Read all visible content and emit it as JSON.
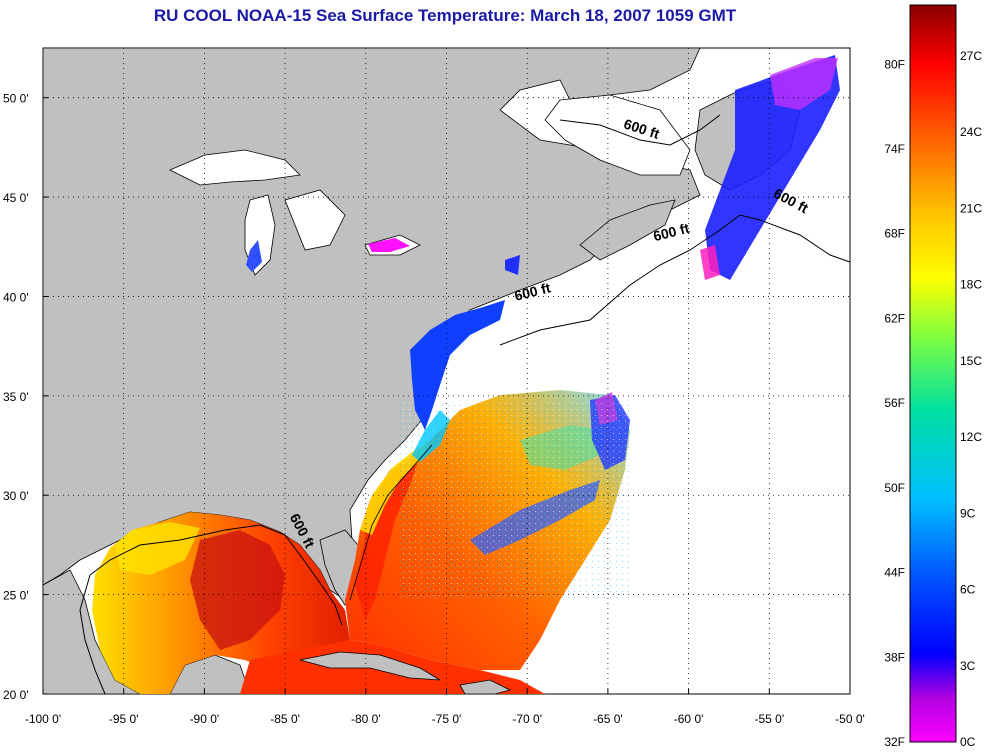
{
  "title": "RU COOL  NOAA-15  Sea Surface Temperature:  March 18, 2007 1059 GMT",
  "map": {
    "lon_ticks": [
      "-100 0'",
      "-95 0'",
      "-90 0'",
      "-85 0'",
      "-80 0'",
      "-75 0'",
      "-70 0'",
      "-65 0'",
      "-60 0'",
      "-55 0'",
      "-50 0'"
    ],
    "lat_ticks": [
      "50 0'",
      "45 0'",
      "40 0'",
      "35 0'",
      "30 0'",
      "25 0'",
      "20 0'"
    ],
    "lon_range": [
      -100,
      -50
    ],
    "lat_range": [
      20,
      52.5
    ],
    "grid": "dotted",
    "land_color": "#c0c0c0",
    "no_data_color": "#ffffff",
    "contour_labels": [
      {
        "text": "600 ft",
        "lon": -63.0,
        "lat": 48.2,
        "rotate": 18
      },
      {
        "text": "600 ft",
        "lon": -53.8,
        "lat": 44.6,
        "rotate": 28
      },
      {
        "text": "600 ft",
        "lon": -61.0,
        "lat": 43.0,
        "rotate": -14
      },
      {
        "text": "600 ft",
        "lon": -69.6,
        "lat": 40.0,
        "rotate": -14
      },
      {
        "text": "600 ft",
        "lon": -84.2,
        "lat": 28.1,
        "rotate": 62
      }
    ]
  },
  "colorbar": {
    "f_labels": [
      "80F",
      "74F",
      "68F",
      "62F",
      "56F",
      "50F",
      "44F",
      "38F",
      "32F"
    ],
    "c_labels": [
      "27C",
      "24C",
      "21C",
      "18C",
      "15C",
      "12C",
      "9C",
      "6C",
      "3C",
      "0C"
    ],
    "range_c": [
      0,
      29
    ]
  },
  "colors": {
    "title": "#1a1aa6",
    "land": "#c0c0c0",
    "coast": "#000000"
  }
}
